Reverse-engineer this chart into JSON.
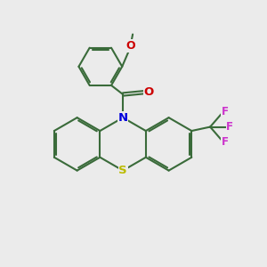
{
  "background_color": "#ebebeb",
  "bond_color": "#3a6b3a",
  "bond_width": 1.5,
  "atom_colors": {
    "N": "#0000dd",
    "S": "#bbbb00",
    "O": "#cc0000",
    "F": "#cc33cc",
    "C": "#3a6b3a"
  },
  "figsize": [
    3.0,
    3.0
  ],
  "dpi": 100
}
